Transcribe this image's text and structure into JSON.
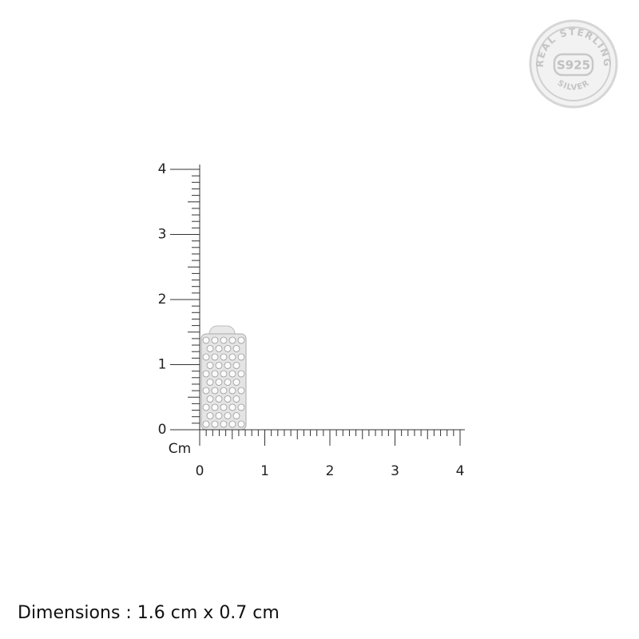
{
  "badge": {
    "top": "REAL STERLING",
    "center": "S925",
    "bottom": "SILVER"
  },
  "ruler": {
    "unit": "Cm",
    "x_ticks": [
      0,
      1,
      2,
      3,
      4
    ],
    "y_ticks": [
      0,
      1,
      2,
      3,
      4
    ]
  },
  "caption": "Dimensions : 1.6 cm x  0.7 cm"
}
